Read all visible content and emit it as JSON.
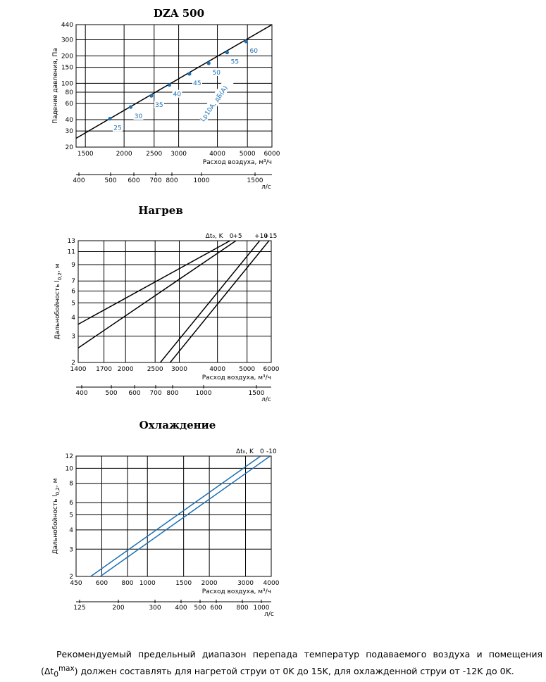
{
  "chart_data": [
    {
      "type": "line",
      "title": "DZA 500",
      "xlabel": "Расход воздуха, м³/ч",
      "ylabel": "Падение давления, Па",
      "x_scale": "log",
      "y_scale": "log",
      "xlim": [
        1400,
        6000
      ],
      "ylim": [
        20,
        440
      ],
      "x_ticks": [
        "1500",
        "2000",
        "2500",
        "3000",
        "4000",
        "5000",
        "6000"
      ],
      "y_ticks": [
        "20",
        "30",
        "40",
        "60",
        "80",
        "100",
        "150",
        "200",
        "300",
        "440"
      ],
      "secondary_x": {
        "label": "л/с",
        "ticks": [
          "400",
          "500",
          "600",
          "700",
          "800",
          "1000",
          "1500"
        ]
      },
      "series": [
        {
          "points": [
            [
              1400,
              25
            ],
            [
              6000,
              440
            ]
          ]
        }
      ],
      "markers": [
        {
          "x": 1800,
          "y": 41,
          "label": "25"
        },
        {
          "x": 2100,
          "y": 55,
          "label": "30"
        },
        {
          "x": 2450,
          "y": 73,
          "label": "35"
        },
        {
          "x": 2800,
          "y": 96,
          "label": "40"
        },
        {
          "x": 3250,
          "y": 127,
          "label": "45"
        },
        {
          "x": 3750,
          "y": 166,
          "label": "50"
        },
        {
          "x": 4300,
          "y": 218,
          "label": "55"
        },
        {
          "x": 4950,
          "y": 288,
          "label": "60"
        }
      ],
      "annotation": "Lp10A, дБ(A)",
      "marker_color": "#1a6fb5"
    },
    {
      "type": "line",
      "title": "Нагрев",
      "xlabel": "Расход воздуха, м³/ч",
      "ylabel": "Дальнобойность l",
      "ylabel_sub": "0,2",
      "ylabel_unit": ", м",
      "x_scale": "log",
      "y_scale": "log",
      "xlim": [
        1400,
        6000
      ],
      "ylim": [
        2,
        13
      ],
      "x_ticks": [
        "1400",
        "1700",
        "2000",
        "2500",
        "3000",
        "4000",
        "5000",
        "6000"
      ],
      "y_ticks": [
        "2",
        "3",
        "4",
        "5",
        "6",
        "7",
        "9",
        "11",
        "13"
      ],
      "secondary_x": {
        "label": "л/с",
        "ticks": [
          "400",
          "500",
          "600",
          "700",
          "800",
          "1000",
          "1500"
        ]
      },
      "legend_title": "Δt₀, K",
      "series": [
        {
          "name": "0",
          "points": [
            [
              1400,
              3.6
            ],
            [
              4400,
              13
            ]
          ]
        },
        {
          "name": "+5",
          "points": [
            [
              1400,
              2.5
            ],
            [
              4600,
              13
            ]
          ]
        },
        {
          "name": "+10",
          "points": [
            [
              2600,
              2
            ],
            [
              5500,
              13
            ]
          ]
        },
        {
          "name": "+15",
          "points": [
            [
              2800,
              2
            ],
            [
              5900,
              13
            ]
          ]
        }
      ],
      "line_color": "#000000"
    },
    {
      "type": "line",
      "title": "Охлаждение",
      "xlabel": "Расход воздуха, м³/ч",
      "ylabel": "Дальнобойность l",
      "ylabel_sub": "0,2",
      "ylabel_unit": ", м",
      "x_scale": "log",
      "y_scale": "log",
      "xlim": [
        450,
        4000
      ],
      "ylim": [
        2,
        12
      ],
      "x_ticks": [
        "450",
        "600",
        "800",
        "1000",
        "1500",
        "2000",
        "3000",
        "4000"
      ],
      "y_ticks": [
        "2",
        "3",
        "4",
        "5",
        "6",
        "8",
        "10",
        "12"
      ],
      "secondary_x": {
        "label": "л/с",
        "ticks": [
          "125",
          "200",
          "300",
          "400",
          "500",
          "600",
          "800",
          "1000"
        ]
      },
      "legend_title": "Δt₀, K",
      "series": [
        {
          "name": "0",
          "points": [
            [
              530,
              2
            ],
            [
              3550,
              12
            ]
          ]
        },
        {
          "name": "-10",
          "points": [
            [
              590,
              2
            ],
            [
              3950,
              12
            ]
          ]
        }
      ],
      "line_color": "#1a6fb5"
    }
  ],
  "footnote": {
    "text_before": "Рекомендуемый предельный диапазон перепада температур подаваемого воздуха и помещения (Δt",
    "sub": "0",
    "sup": "max",
    "text_after": ") должен составлять для нагретой струи от 0K до 15K, для охлажденной струи от -12K до 0K."
  }
}
